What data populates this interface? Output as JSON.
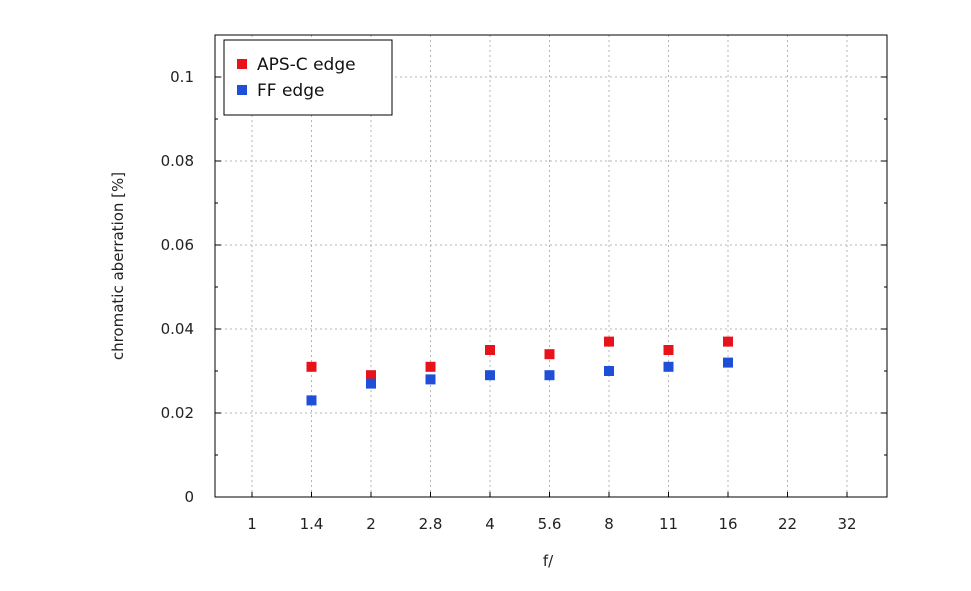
{
  "chart_data": {
    "type": "scatter",
    "title": "",
    "xlabel": "f/",
    "ylabel": "chromatic aberration [%]",
    "x_categories": [
      "1",
      "1.4",
      "2",
      "2.8",
      "4",
      "5.6",
      "8",
      "11",
      "16",
      "22",
      "32"
    ],
    "ylim": [
      0,
      0.11
    ],
    "yticks": [
      0,
      0.02,
      0.04,
      0.06,
      0.08,
      0.1
    ],
    "ytick_labels": [
      "0",
      "0.02",
      "0.04",
      "0.06",
      "0.08",
      "0.1"
    ],
    "grid": true,
    "legend_position": "top-left",
    "series": [
      {
        "name": "APS-C edge",
        "color": "#e8121b",
        "x": [
          "1.4",
          "2",
          "2.8",
          "4",
          "5.6",
          "8",
          "11",
          "16"
        ],
        "values": [
          0.031,
          0.029,
          0.031,
          0.035,
          0.034,
          0.037,
          0.035,
          0.037
        ]
      },
      {
        "name": "FF edge",
        "color": "#1f4fd8",
        "x": [
          "1.4",
          "2",
          "2.8",
          "4",
          "5.6",
          "8",
          "11",
          "16"
        ],
        "values": [
          0.023,
          0.027,
          0.028,
          0.029,
          0.029,
          0.03,
          0.031,
          0.032
        ]
      }
    ]
  }
}
